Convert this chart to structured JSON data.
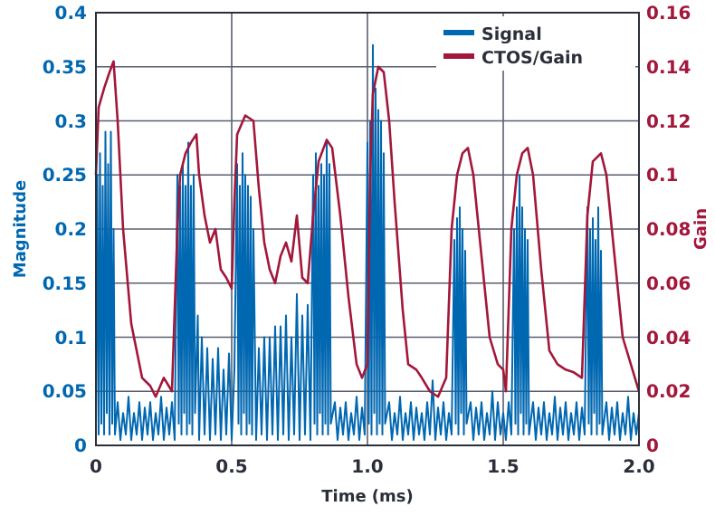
{
  "chart_data": {
    "type": "line",
    "xlabel": "Time (ms)",
    "ylabel": "Magnitude",
    "y2label": "Gain",
    "xlim": [
      0,
      2
    ],
    "xticks": [
      0,
      0.5,
      {
        "value": 1,
        "label": "1.0"
      },
      1.5,
      {
        "value": 2,
        "label": "2.0"
      }
    ],
    "ylim": [
      0,
      0.4
    ],
    "yticks": [
      0,
      0.05,
      0.1,
      0.15,
      0.2,
      0.25,
      0.3,
      0.35,
      0.4
    ],
    "y2lim": [
      0,
      0.16
    ],
    "y2ticks": [
      0,
      0.02,
      0.04,
      0.06,
      0.08,
      0.1,
      0.12,
      0.14,
      0.16
    ],
    "grid": true,
    "legend": "top right",
    "series": [
      {
        "name": "Signal",
        "color": "#0067b1",
        "x": [
          0,
          0.005,
          0.01,
          0.015,
          0.02,
          0.025,
          0.03,
          0.035,
          0.04,
          0.045,
          0.05,
          0.055,
          0.06,
          0.065,
          0.07,
          0.08,
          0.09,
          0.1,
          0.11,
          0.12,
          0.13,
          0.14,
          0.15,
          0.16,
          0.17,
          0.18,
          0.19,
          0.2,
          0.21,
          0.22,
          0.23,
          0.24,
          0.25,
          0.26,
          0.27,
          0.28,
          0.29,
          0.3,
          0.305,
          0.31,
          0.315,
          0.32,
          0.325,
          0.33,
          0.335,
          0.34,
          0.345,
          0.35,
          0.355,
          0.36,
          0.365,
          0.375,
          0.38,
          0.39,
          0.4,
          0.41,
          0.42,
          0.43,
          0.44,
          0.45,
          0.46,
          0.47,
          0.48,
          0.49,
          0.5,
          0.51,
          0.52,
          0.525,
          0.53,
          0.535,
          0.54,
          0.545,
          0.55,
          0.555,
          0.56,
          0.565,
          0.57,
          0.575,
          0.58,
          0.59,
          0.6,
          0.61,
          0.62,
          0.63,
          0.64,
          0.65,
          0.66,
          0.67,
          0.68,
          0.69,
          0.7,
          0.71,
          0.72,
          0.73,
          0.74,
          0.75,
          0.76,
          0.77,
          0.78,
          0.79,
          0.8,
          0.805,
          0.81,
          0.815,
          0.82,
          0.825,
          0.83,
          0.835,
          0.84,
          0.845,
          0.85,
          0.855,
          0.86,
          0.865,
          0.88,
          0.89,
          0.9,
          0.91,
          0.92,
          0.93,
          0.94,
          0.95,
          0.96,
          0.97,
          0.98,
          0.99,
          1.0,
          1.005,
          1.01,
          1.015,
          1.02,
          1.025,
          1.03,
          1.035,
          1.04,
          1.045,
          1.05,
          1.055,
          1.06,
          1.065,
          1.08,
          1.09,
          1.1,
          1.11,
          1.12,
          1.13,
          1.14,
          1.15,
          1.16,
          1.17,
          1.18,
          1.19,
          1.2,
          1.21,
          1.22,
          1.23,
          1.24,
          1.25,
          1.26,
          1.27,
          1.28,
          1.29,
          1.3,
          1.31,
          1.32,
          1.325,
          1.33,
          1.335,
          1.34,
          1.345,
          1.35,
          1.355,
          1.36,
          1.365,
          1.38,
          1.39,
          1.4,
          1.41,
          1.42,
          1.43,
          1.44,
          1.45,
          1.46,
          1.47,
          1.48,
          1.49,
          1.5,
          1.51,
          1.52,
          1.53,
          1.54,
          1.545,
          1.55,
          1.555,
          1.56,
          1.565,
          1.57,
          1.575,
          1.58,
          1.585,
          1.59,
          1.595,
          1.61,
          1.62,
          1.63,
          1.64,
          1.65,
          1.66,
          1.67,
          1.68,
          1.69,
          1.7,
          1.71,
          1.72,
          1.73,
          1.74,
          1.75,
          1.76,
          1.77,
          1.78,
          1.79,
          1.8,
          1.81,
          1.815,
          1.82,
          1.825,
          1.83,
          1.835,
          1.84,
          1.845,
          1.85,
          1.855,
          1.86,
          1.865,
          1.88,
          1.89,
          1.9,
          1.91,
          1.92,
          1.93,
          1.94,
          1.95,
          1.96,
          1.97,
          1.98,
          1.99,
          2.0
        ],
        "values": [
          0.02,
          0.25,
          0.01,
          0.27,
          0.02,
          0.24,
          0.01,
          0.29,
          0.03,
          0.26,
          0.01,
          0.29,
          0.02,
          0.2,
          0.01,
          0.04,
          0.005,
          0.03,
          0.01,
          0.045,
          0.005,
          0.03,
          0.01,
          0.04,
          0.005,
          0.035,
          0.01,
          0.04,
          0.005,
          0.03,
          0.01,
          0.045,
          0.005,
          0.035,
          0.01,
          0.04,
          0.005,
          0.25,
          0.02,
          0.24,
          0.01,
          0.26,
          0.03,
          0.24,
          0.01,
          0.28,
          0.02,
          0.24,
          0.01,
          0.25,
          0.03,
          0.12,
          0.005,
          0.1,
          0.01,
          0.09,
          0.005,
          0.08,
          0.01,
          0.09,
          0.005,
          0.07,
          0.01,
          0.085,
          0.005,
          0.07,
          0.26,
          0.02,
          0.24,
          0.01,
          0.27,
          0.03,
          0.25,
          0.01,
          0.24,
          0.02,
          0.23,
          0.01,
          0.2,
          0.005,
          0.09,
          0.01,
          0.1,
          0.005,
          0.1,
          0.01,
          0.11,
          0.005,
          0.11,
          0.01,
          0.12,
          0.005,
          0.1,
          0.01,
          0.14,
          0.005,
          0.12,
          0.01,
          0.13,
          0.005,
          0.25,
          0.02,
          0.27,
          0.01,
          0.24,
          0.03,
          0.26,
          0.01,
          0.25,
          0.02,
          0.28,
          0.01,
          0.26,
          0.02,
          0.04,
          0.005,
          0.035,
          0.01,
          0.04,
          0.005,
          0.03,
          0.01,
          0.045,
          0.005,
          0.035,
          0.01,
          0.28,
          0.02,
          0.3,
          0.01,
          0.37,
          0.03,
          0.33,
          0.01,
          0.31,
          0.02,
          0.3,
          0.01,
          0.27,
          0.02,
          0.04,
          0.005,
          0.03,
          0.01,
          0.045,
          0.005,
          0.03,
          0.01,
          0.04,
          0.005,
          0.035,
          0.01,
          0.03,
          0.005,
          0.04,
          0.01,
          0.06,
          0.005,
          0.035,
          0.01,
          0.04,
          0.005,
          0.03,
          0.01,
          0.19,
          0.02,
          0.21,
          0.01,
          0.22,
          0.03,
          0.2,
          0.01,
          0.18,
          0.02,
          0.04,
          0.005,
          0.035,
          0.01,
          0.04,
          0.005,
          0.03,
          0.01,
          0.05,
          0.005,
          0.04,
          0.01,
          0.03,
          0.005,
          0.04,
          0.01,
          0.2,
          0.02,
          0.22,
          0.01,
          0.25,
          0.03,
          0.22,
          0.01,
          0.2,
          0.02,
          0.19,
          0.01,
          0.04,
          0.005,
          0.035,
          0.01,
          0.04,
          0.005,
          0.03,
          0.01,
          0.045,
          0.005,
          0.035,
          0.01,
          0.04,
          0.005,
          0.03,
          0.01,
          0.04,
          0.005,
          0.035,
          0.01,
          0.22,
          0.02,
          0.2,
          0.01,
          0.21,
          0.03,
          0.19,
          0.01,
          0.22,
          0.02,
          0.18,
          0.01,
          0.04,
          0.005,
          0.035,
          0.01,
          0.04,
          0.005,
          0.03,
          0.01,
          0.045,
          0.005,
          0.03,
          0.01,
          0.03
        ]
      },
      {
        "name": "CTOS/Gain",
        "color": "#a3173a",
        "axis": "y2",
        "x": [
          0,
          0.01,
          0.03,
          0.05,
          0.065,
          0.08,
          0.1,
          0.13,
          0.17,
          0.2,
          0.22,
          0.25,
          0.28,
          0.3,
          0.31,
          0.33,
          0.35,
          0.37,
          0.38,
          0.4,
          0.42,
          0.44,
          0.46,
          0.48,
          0.5,
          0.51,
          0.52,
          0.55,
          0.58,
          0.6,
          0.62,
          0.64,
          0.66,
          0.68,
          0.7,
          0.72,
          0.74,
          0.76,
          0.78,
          0.8,
          0.82,
          0.85,
          0.87,
          0.9,
          0.93,
          0.96,
          0.98,
          1.0,
          1.01,
          1.02,
          1.04,
          1.06,
          1.08,
          1.1,
          1.13,
          1.15,
          1.18,
          1.2,
          1.23,
          1.26,
          1.29,
          1.31,
          1.33,
          1.35,
          1.37,
          1.39,
          1.42,
          1.45,
          1.48,
          1.5,
          1.51,
          1.53,
          1.55,
          1.57,
          1.59,
          1.61,
          1.64,
          1.67,
          1.7,
          1.73,
          1.76,
          1.79,
          1.81,
          1.83,
          1.86,
          1.88,
          1.91,
          1.94,
          1.97,
          2.0
        ],
        "values": [
          0.1,
          0.125,
          0.132,
          0.138,
          0.142,
          0.12,
          0.08,
          0.045,
          0.025,
          0.022,
          0.018,
          0.025,
          0.02,
          0.08,
          0.1,
          0.108,
          0.112,
          0.115,
          0.1,
          0.085,
          0.075,
          0.08,
          0.065,
          0.062,
          0.058,
          0.09,
          0.115,
          0.122,
          0.12,
          0.095,
          0.075,
          0.065,
          0.06,
          0.07,
          0.075,
          0.068,
          0.085,
          0.062,
          0.06,
          0.085,
          0.105,
          0.113,
          0.11,
          0.085,
          0.055,
          0.03,
          0.025,
          0.03,
          0.1,
          0.13,
          0.14,
          0.138,
          0.12,
          0.09,
          0.05,
          0.03,
          0.028,
          0.025,
          0.02,
          0.018,
          0.025,
          0.08,
          0.1,
          0.108,
          0.11,
          0.1,
          0.07,
          0.04,
          0.03,
          0.028,
          0.02,
          0.08,
          0.1,
          0.108,
          0.11,
          0.1,
          0.065,
          0.035,
          0.03,
          0.028,
          0.027,
          0.025,
          0.085,
          0.105,
          0.108,
          0.1,
          0.07,
          0.04,
          0.03,
          0.02
        ]
      }
    ]
  }
}
